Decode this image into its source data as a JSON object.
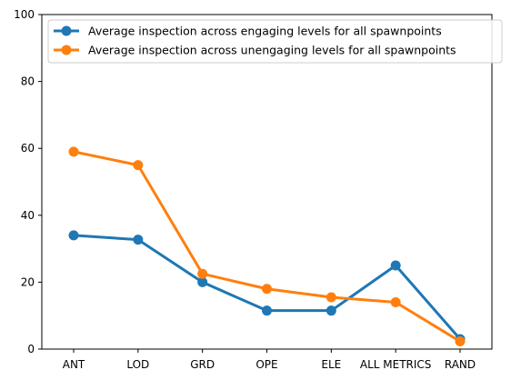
{
  "chart_data": {
    "type": "line",
    "categories": [
      "ANT",
      "LOD",
      "GRD",
      "OPE",
      "ELE",
      "ALL METRICS",
      "RAND"
    ],
    "ylim": [
      0,
      100
    ],
    "yticks": [
      0,
      20,
      40,
      60,
      80,
      100
    ],
    "grid": false,
    "legend_position": "top-right",
    "series": [
      {
        "name": "Average inspection across engaging levels for all spawnpoints",
        "color": "#1f77b4",
        "values": [
          34,
          32.7,
          20,
          11.5,
          11.5,
          25,
          3
        ]
      },
      {
        "name": "Average inspection across unengaging levels for all spawnpoints",
        "color": "#ff7f0e",
        "values": [
          59,
          55,
          22.5,
          18,
          15.5,
          14,
          2.3
        ]
      }
    ]
  }
}
